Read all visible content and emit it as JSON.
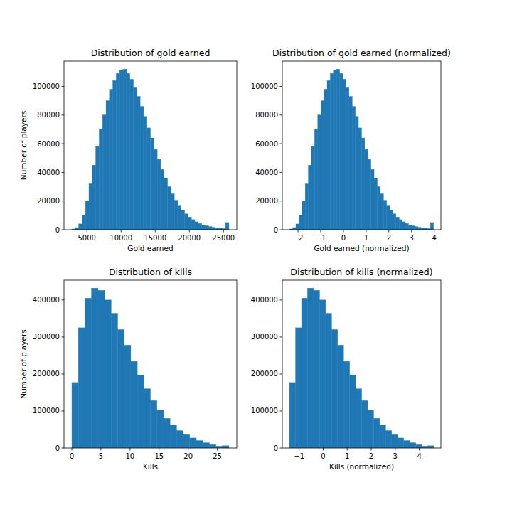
{
  "chart_data": [
    {
      "type": "histogram",
      "title": "Distribution of gold earned",
      "x_label": "Gold earned",
      "y_label": "Number of players",
      "color": "#1f77b4",
      "bins": [
        2800,
        3300,
        3800,
        4300,
        4800,
        5300,
        5800,
        6300,
        6800,
        7300,
        7800,
        8300,
        8800,
        9300,
        9800,
        10300,
        10800,
        11300,
        11800,
        12300,
        12800,
        13300,
        13800,
        14300,
        14800,
        15300,
        15800,
        16300,
        16800,
        17300,
        17800,
        18300,
        18800,
        19300,
        19800,
        20300,
        20800,
        21300,
        21800,
        22300,
        22800,
        23300,
        23800,
        24300,
        24800,
        25300,
        25800
      ],
      "counts": [
        500,
        1500,
        4000,
        10000,
        20000,
        32000,
        45000,
        58000,
        70000,
        80000,
        90000,
        98000,
        104000,
        109000,
        111500,
        112000,
        109000,
        105000,
        99000,
        93000,
        86000,
        79000,
        71000,
        64000,
        56000,
        49000,
        42000,
        36000,
        30000,
        25000,
        20500,
        17000,
        13500,
        11000,
        8800,
        7000,
        5500,
        4300,
        3400,
        2700,
        2100,
        1600,
        1300,
        1000,
        800,
        5000
      ],
      "xlim": [
        1650,
        26950
      ],
      "ylim": [
        0,
        117600
      ],
      "xticks": [
        5000,
        10000,
        15000,
        20000,
        25000
      ],
      "yticks": [
        0,
        20000,
        40000,
        60000,
        80000,
        100000
      ]
    },
    {
      "type": "histogram",
      "title": "Distribution of gold earned (normalized)",
      "x_label": "Gold earned (normalized)",
      "color": "#1f77b4",
      "bins": [
        -2.37,
        -2.232,
        -2.095,
        -1.957,
        -1.819,
        -1.681,
        -1.544,
        -1.406,
        -1.268,
        -1.13,
        -0.993,
        -0.855,
        -0.717,
        -0.579,
        -0.442,
        -0.304,
        -0.166,
        -0.028,
        0.109,
        0.247,
        0.385,
        0.523,
        0.66,
        0.798,
        0.936,
        1.074,
        1.211,
        1.349,
        1.487,
        1.625,
        1.762,
        1.9,
        2.038,
        2.176,
        2.313,
        2.451,
        2.589,
        2.727,
        2.864,
        3.002,
        3.14,
        3.278,
        3.415,
        3.553,
        3.691,
        3.829,
        3.966
      ],
      "counts": [
        500,
        1500,
        4000,
        10000,
        20000,
        32000,
        45000,
        58000,
        70000,
        80000,
        90000,
        98000,
        104000,
        109000,
        111500,
        112000,
        109000,
        105000,
        99000,
        93000,
        86000,
        79000,
        71000,
        64000,
        56000,
        49000,
        42000,
        36000,
        30000,
        25000,
        20500,
        17000,
        13500,
        11000,
        8800,
        7000,
        5500,
        4300,
        3400,
        2700,
        2100,
        1600,
        1300,
        1000,
        800,
        5000
      ],
      "xlim": [
        -2.69,
        4.29
      ],
      "ylim": [
        0,
        117600
      ],
      "xticks": [
        {
          "value": -2,
          "label": "−2"
        },
        {
          "value": -1,
          "label": "−1"
        },
        0,
        1,
        2,
        3,
        4
      ],
      "yticks": [
        0,
        20000,
        40000,
        60000,
        80000,
        100000
      ]
    },
    {
      "type": "histogram",
      "title": "Distribution of kills",
      "x_label": "Kills",
      "y_label": "Number of players",
      "color": "#1f77b4",
      "bins": [
        0,
        1.125,
        2.25,
        3.375,
        4.5,
        5.625,
        6.75,
        7.875,
        9,
        10.125,
        11.25,
        12.375,
        13.5,
        14.625,
        15.75,
        16.875,
        18,
        19.125,
        20.25,
        21.375,
        22.5,
        23.625,
        24.75,
        25.875,
        27
      ],
      "counts": [
        177000,
        325000,
        405000,
        432000,
        426000,
        400000,
        364000,
        320000,
        278000,
        234000,
        197000,
        160000,
        128000,
        103000,
        80000,
        62000,
        47000,
        36000,
        27000,
        20000,
        14000,
        9000,
        5000,
        6000
      ],
      "xlim": [
        -1.35,
        28.35
      ],
      "ylim": [
        0,
        453600
      ],
      "xticks": [
        0,
        5,
        10,
        15,
        20,
        25
      ],
      "yticks": [
        0,
        100000,
        200000,
        300000,
        400000
      ]
    },
    {
      "type": "histogram",
      "title": "Distribution of kills (normalized)",
      "x_label": "Kills (normalized)",
      "color": "#1f77b4",
      "bins": [
        -1.4,
        -1.15,
        -0.9,
        -0.65,
        -0.4,
        -0.15,
        0.1,
        0.35,
        0.6,
        0.85,
        1.1,
        1.35,
        1.6,
        1.85,
        2.1,
        2.35,
        2.6,
        2.85,
        3.1,
        3.35,
        3.6,
        3.85,
        4.1,
        4.35,
        4.6
      ],
      "counts": [
        177000,
        325000,
        405000,
        432000,
        426000,
        400000,
        364000,
        320000,
        278000,
        234000,
        197000,
        160000,
        128000,
        103000,
        80000,
        62000,
        47000,
        36000,
        27000,
        20000,
        14000,
        9000,
        5000,
        6000
      ],
      "xlim": [
        -1.7,
        4.9
      ],
      "ylim": [
        0,
        453600
      ],
      "xticks": [
        {
          "value": -1,
          "label": "−1"
        },
        0,
        1,
        2,
        3,
        4
      ],
      "yticks": [
        0,
        100000,
        200000,
        300000,
        400000
      ]
    }
  ]
}
